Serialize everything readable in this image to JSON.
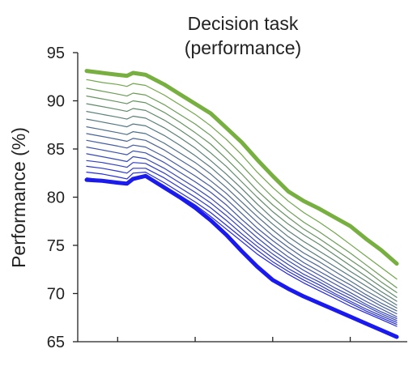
{
  "chart_data": {
    "type": "line",
    "title_lines": [
      "Decision task",
      "(performance)"
    ],
    "ylabel": "Performance (%)",
    "xlabel": "",
    "ylim": [
      65,
      95
    ],
    "yticks": [
      95,
      90,
      85,
      80,
      75,
      70,
      65
    ],
    "xlim": [
      0,
      20
    ],
    "x_ticks_unlabeled": [
      2,
      7,
      12,
      17
    ],
    "x": [
      0,
      1,
      2,
      2.6,
      3,
      3.8,
      5,
      6,
      7,
      8,
      9,
      10,
      11,
      12,
      13,
      14,
      15,
      16,
      17,
      18,
      19,
      20
    ],
    "color_start": "#1a1aee",
    "color_end": "#77b040",
    "grid": false,
    "legend": "none",
    "series": [
      {
        "values": [
          93.1,
          92.9,
          92.7,
          92.6,
          92.9,
          92.7,
          91.7,
          90.7,
          89.7,
          88.7,
          87.2,
          85.7,
          83.9,
          82.2,
          80.6,
          79.6,
          78.8,
          77.9,
          77.0,
          75.7,
          74.5,
          73.1
        ]
      },
      {
        "values": [
          92.2,
          91.9,
          91.7,
          91.5,
          91.8,
          91.6,
          90.6,
          89.6,
          88.6,
          87.4,
          86.0,
          84.4,
          82.6,
          81.0,
          79.6,
          78.4,
          77.4,
          76.3,
          75.1,
          73.9,
          72.7,
          71.5
        ]
      },
      {
        "values": [
          91.3,
          91.0,
          90.7,
          90.5,
          90.8,
          90.6,
          89.6,
          88.6,
          87.6,
          86.4,
          84.9,
          83.3,
          81.6,
          80.0,
          78.6,
          77.4,
          76.4,
          75.3,
          74.2,
          73.0,
          71.8,
          70.6
        ]
      },
      {
        "values": [
          90.5,
          90.2,
          89.9,
          89.7,
          90.0,
          89.8,
          88.8,
          87.8,
          86.7,
          85.5,
          84.0,
          82.4,
          80.7,
          79.2,
          77.9,
          76.7,
          75.7,
          74.6,
          73.5,
          72.4,
          71.2,
          70.1
        ]
      },
      {
        "values": [
          89.7,
          89.4,
          89.1,
          88.9,
          89.2,
          89.0,
          88.0,
          87.0,
          85.9,
          84.6,
          83.2,
          81.6,
          80.0,
          78.5,
          77.2,
          76.1,
          75.1,
          74.0,
          72.9,
          71.8,
          70.7,
          69.6
        ]
      },
      {
        "values": [
          88.9,
          88.6,
          88.3,
          88.1,
          88.4,
          88.2,
          87.2,
          86.2,
          85.1,
          83.8,
          82.4,
          80.9,
          79.3,
          77.8,
          76.5,
          75.4,
          74.4,
          73.4,
          72.3,
          71.3,
          70.2,
          69.2
        ]
      },
      {
        "values": [
          88.1,
          87.8,
          87.5,
          87.3,
          87.6,
          87.4,
          86.4,
          85.4,
          84.3,
          83.1,
          81.7,
          80.2,
          78.6,
          77.2,
          75.9,
          74.8,
          73.8,
          72.8,
          71.8,
          70.8,
          69.8,
          68.8
        ]
      },
      {
        "values": [
          87.3,
          87.0,
          86.7,
          86.5,
          86.8,
          86.6,
          85.6,
          84.6,
          83.6,
          82.4,
          81.0,
          79.5,
          78.0,
          76.6,
          75.3,
          74.2,
          73.3,
          72.3,
          71.3,
          70.3,
          69.4,
          68.5
        ]
      },
      {
        "values": [
          86.6,
          86.3,
          86.0,
          85.8,
          86.1,
          85.9,
          84.9,
          83.9,
          82.9,
          81.7,
          80.4,
          78.9,
          77.4,
          76.0,
          74.8,
          73.7,
          72.8,
          71.8,
          70.9,
          69.9,
          69.0,
          68.2
        ]
      },
      {
        "values": [
          85.9,
          85.6,
          85.3,
          85.1,
          85.4,
          85.2,
          84.2,
          83.2,
          82.2,
          81.1,
          79.8,
          78.3,
          76.8,
          75.5,
          74.3,
          73.2,
          72.3,
          71.4,
          70.5,
          69.6,
          68.7,
          67.9
        ]
      },
      {
        "values": [
          85.2,
          84.9,
          84.6,
          84.4,
          84.8,
          84.6,
          83.6,
          82.6,
          81.6,
          80.5,
          79.2,
          77.7,
          76.3,
          75.0,
          73.8,
          72.8,
          71.9,
          71.0,
          70.1,
          69.2,
          68.4,
          67.6
        ]
      },
      {
        "values": [
          84.5,
          84.2,
          83.9,
          83.7,
          84.2,
          84.0,
          83.0,
          82.0,
          81.0,
          79.9,
          78.6,
          77.2,
          75.8,
          74.5,
          73.4,
          72.4,
          71.5,
          70.6,
          69.8,
          68.9,
          68.1,
          67.4
        ]
      },
      {
        "values": [
          83.8,
          83.6,
          83.3,
          83.1,
          83.6,
          83.5,
          82.5,
          81.5,
          80.5,
          79.4,
          78.1,
          76.7,
          75.3,
          74.1,
          73.0,
          72.0,
          71.2,
          70.3,
          69.5,
          68.7,
          67.9,
          67.2
        ]
      },
      {
        "values": [
          83.2,
          83.0,
          82.7,
          82.5,
          83.0,
          83.0,
          82.0,
          81.0,
          80.0,
          78.9,
          77.6,
          76.2,
          74.9,
          73.7,
          72.6,
          71.7,
          70.9,
          70.0,
          69.2,
          68.4,
          67.7,
          67.0
        ]
      },
      {
        "values": [
          82.6,
          82.4,
          82.1,
          81.9,
          82.5,
          82.6,
          81.5,
          80.5,
          79.5,
          78.4,
          77.1,
          75.8,
          74.5,
          73.3,
          72.3,
          71.4,
          70.6,
          69.8,
          69.0,
          68.2,
          67.5,
          66.8
        ]
      },
      {
        "values": [
          82.0,
          81.8,
          81.6,
          81.4,
          82.0,
          82.3,
          81.2,
          80.2,
          79.2,
          78.0,
          76.7,
          75.4,
          74.1,
          73.0,
          72.0,
          71.1,
          70.3,
          69.5,
          68.7,
          68.0,
          67.3,
          66.6
        ]
      },
      {
        "values": [
          81.8,
          81.7,
          81.5,
          81.4,
          81.9,
          82.2,
          81.0,
          80.0,
          78.9,
          77.6,
          76.1,
          74.4,
          72.8,
          71.4,
          70.5,
          69.7,
          69.0,
          68.3,
          67.6,
          66.9,
          66.2,
          65.5
        ]
      }
    ]
  }
}
